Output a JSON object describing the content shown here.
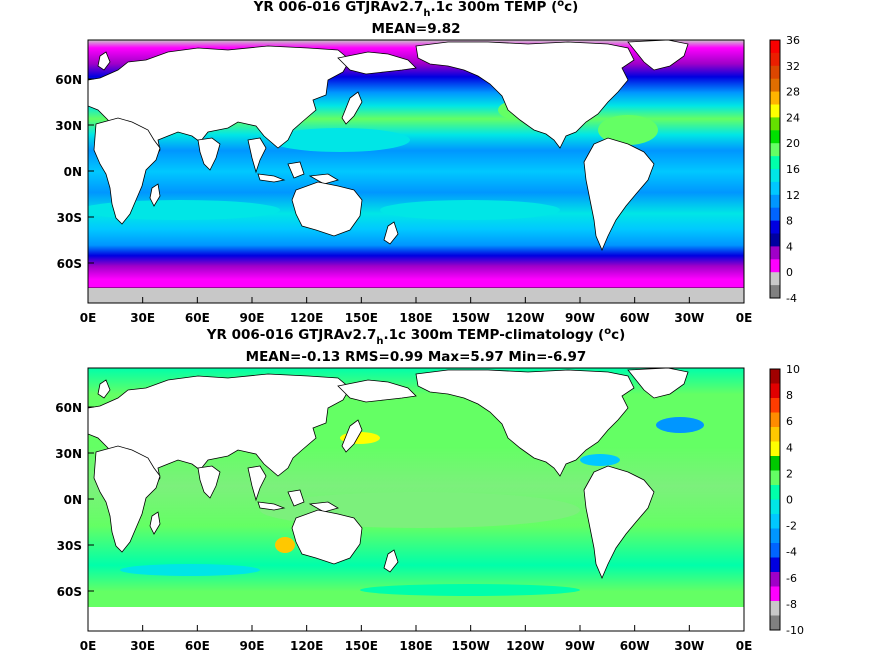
{
  "panels": [
    {
      "title_pre": "YR 006-016 GTJRAv2.7",
      "title_sub": "h",
      "title_post": ".1c 300m TEMP (",
      "title_sup": "o",
      "title_end": "c)",
      "subtitle": "MEAN=9.82",
      "lat_labels": [
        "60N",
        "30N",
        "0N",
        "30S",
        "60S"
      ],
      "lon_labels": [
        "0E",
        "30E",
        "60E",
        "90E",
        "120E",
        "150E",
        "180E",
        "150W",
        "120W",
        "90W",
        "60W",
        "30W",
        "0E"
      ],
      "colorbar_labels": [
        "36",
        "32",
        "28",
        "24",
        "20",
        "16",
        "12",
        "8",
        "4",
        "0",
        "-4"
      ],
      "colorbar_colors": [
        "#fa0000",
        "#eb1e00",
        "#dc4600",
        "#e16e00",
        "#ffb400",
        "#ffff00",
        "#64e100",
        "#00e100",
        "#64ff64",
        "#00ffaa",
        "#00e6e6",
        "#00c8ff",
        "#0096ff",
        "#0064ff",
        "#0000e1",
        "#0000a0",
        "#a000c8",
        "#ff00ff",
        "#c8c8c8",
        "#808080"
      ]
    },
    {
      "title_pre": "YR 006-016 GTJRAv2.7",
      "title_sub": "h",
      "title_post": ".1c 300m TEMP-climatology (",
      "title_sup": "o",
      "title_end": "c)",
      "subtitle": "MEAN=-0.13   RMS=0.99   Max=5.97   Min=-6.97",
      "lat_labels": [
        "60N",
        "30N",
        "0N",
        "30S",
        "60S"
      ],
      "lon_labels": [
        "0E",
        "30E",
        "60E",
        "90E",
        "120E",
        "150E",
        "180E",
        "150W",
        "120W",
        "90W",
        "60W",
        "30W",
        "0E"
      ],
      "colorbar_labels": [
        "10",
        "8",
        "6",
        "4",
        "2",
        "0",
        "-2",
        "-4",
        "-6",
        "-8",
        "-10"
      ],
      "colorbar_colors": [
        "#a00000",
        "#e10000",
        "#ff3c00",
        "#ff8c00",
        "#ffc800",
        "#ffff00",
        "#00c800",
        "#64ff64",
        "#00ffaa",
        "#00e6e6",
        "#00c8ff",
        "#0096ff",
        "#0064ff",
        "#0000e1",
        "#a000c8",
        "#ff00ff",
        "#c8c8c8",
        "#808080"
      ]
    }
  ],
  "colors": {
    "land": "#ffffff",
    "coast": "#000000",
    "ice": "#c8c8c8"
  }
}
